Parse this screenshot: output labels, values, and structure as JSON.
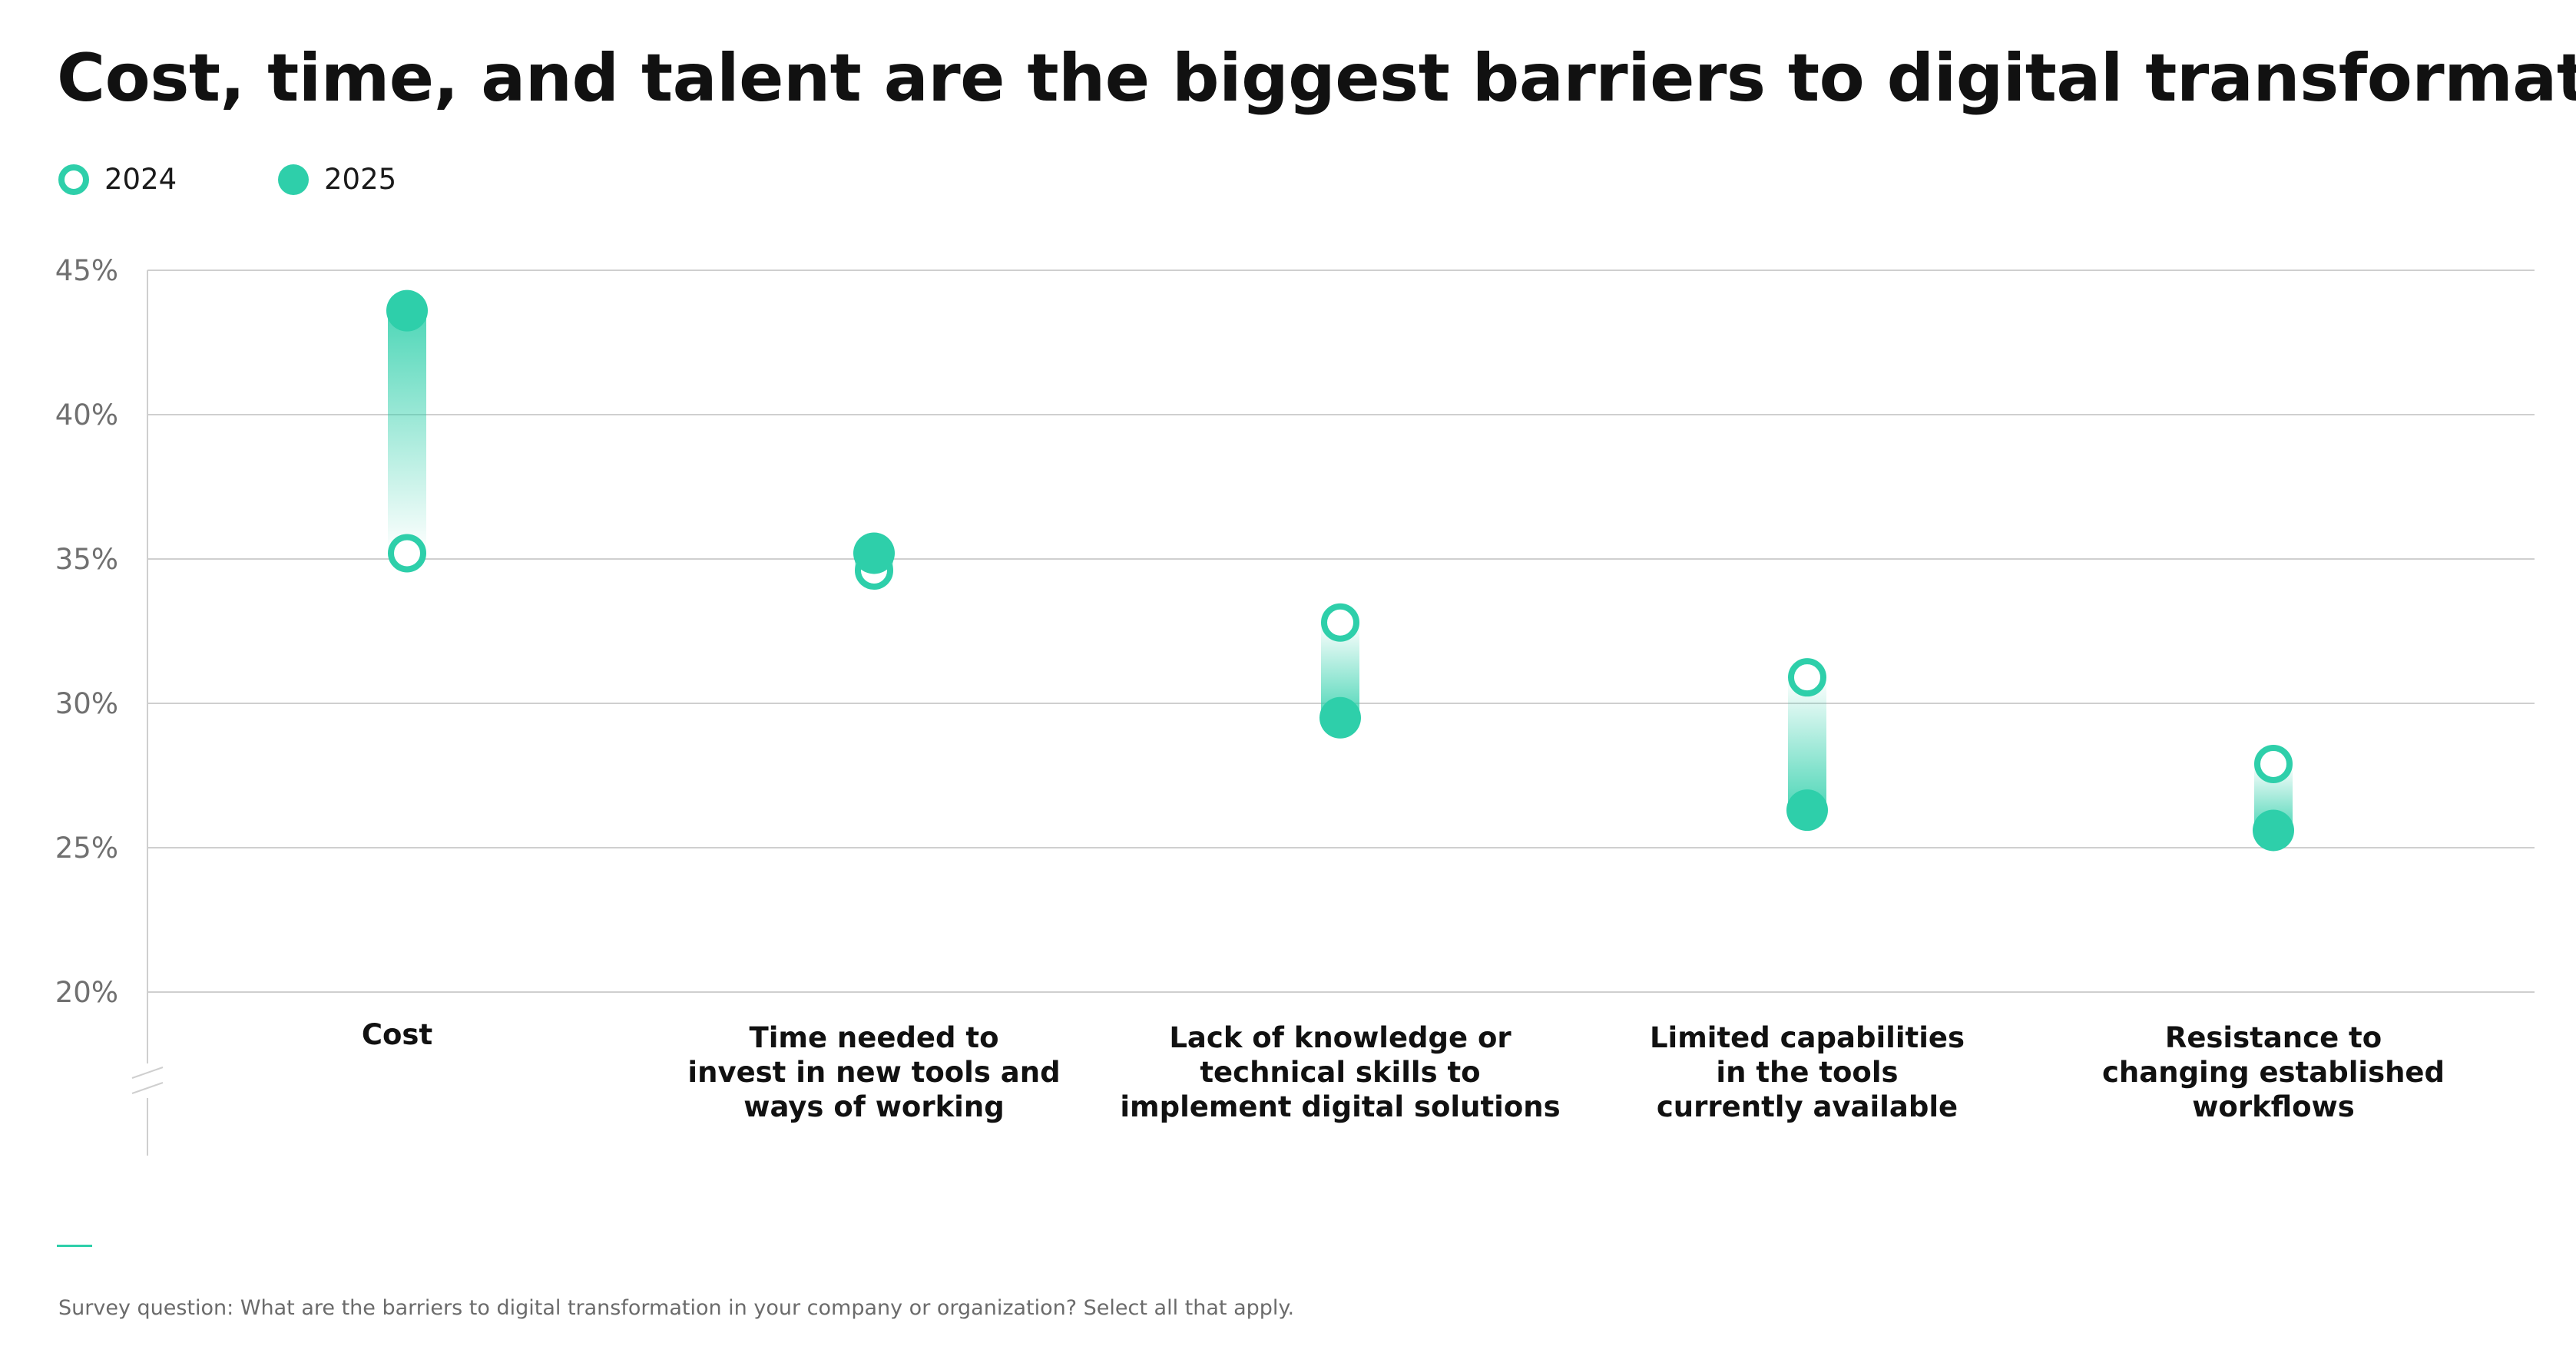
{
  "title": "Cost, time, and talent are the biggest barriers to digital transformation",
  "legend": {
    "items": [
      {
        "label": "2024",
        "style": "hollow"
      },
      {
        "label": "2025",
        "style": "filled"
      }
    ]
  },
  "colors": {
    "accent": "#2ecfaa",
    "grid": "#cfcfcf",
    "tick": "#707070",
    "text": "#111111"
  },
  "chart_data": {
    "type": "dumbbell",
    "title": "Cost, time, and talent are the biggest barriers to digital transformation",
    "categories": [
      [
        "Cost"
      ],
      [
        "Time needed to",
        "invest in new tools and",
        "ways of working"
      ],
      [
        "Lack of knowledge or",
        "technical skills to",
        "implement digital solutions"
      ],
      [
        "Limited capabilities",
        "in the tools",
        "currently available"
      ],
      [
        "Resistance to",
        "changing established",
        "workflows"
      ]
    ],
    "series": [
      {
        "name": "2024",
        "values": [
          35.2,
          34.6,
          32.8,
          30.9,
          27.9
        ]
      },
      {
        "name": "2025",
        "values": [
          43.6,
          35.2,
          29.5,
          26.3,
          25.6
        ]
      }
    ],
    "ylim": [
      20,
      45
    ],
    "yticks": [
      20,
      25,
      30,
      35,
      40,
      45
    ],
    "ytick_labels": [
      "20%",
      "25%",
      "30%",
      "35%",
      "40%",
      "45%"
    ],
    "y_axis_break": true,
    "grid": true,
    "legend_position": "top-left"
  },
  "footer": {
    "note": "Survey question: What are the barriers to digital transformation in your company or organization? Select all that apply."
  }
}
